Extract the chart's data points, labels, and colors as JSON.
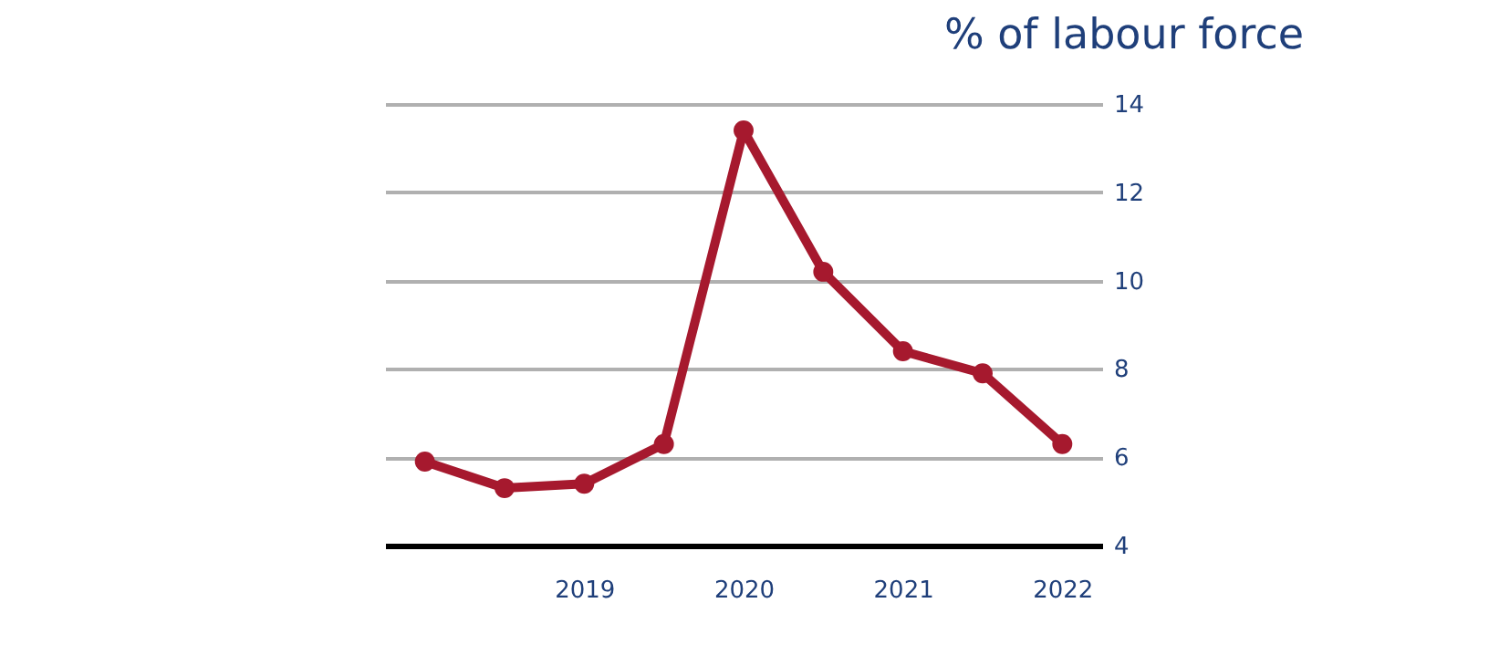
{
  "chart_data": {
    "type": "line",
    "ylabel": "% of labour force",
    "categories": [
      null,
      null,
      "2019",
      null,
      "2020",
      null,
      "2021",
      null,
      "2022"
    ],
    "series": [
      {
        "color": "#a6192e",
        "values": [
          5.9,
          5.3,
          5.4,
          6.3,
          13.4,
          10.2,
          8.4,
          7.9,
          6.3
        ]
      }
    ],
    "ylim": [
      4,
      14
    ],
    "yticks": [
      4,
      6,
      8,
      10,
      12,
      14
    ],
    "grid": "y",
    "marker": "circle",
    "line_style": "solid"
  }
}
